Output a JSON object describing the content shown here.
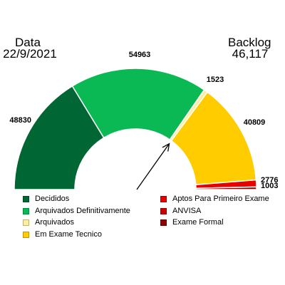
{
  "header": {
    "data_label": "Data",
    "data_value": "22/9/2021",
    "backlog_label": "Backlog",
    "backlog_value": "46,117"
  },
  "chart_data": {
    "type": "gauge",
    "series": [
      {
        "name": "Decididos",
        "value": 48830,
        "color": "#006633"
      },
      {
        "name": "Arquivados Definitivamente",
        "value": 54963,
        "color": "#0ab954"
      },
      {
        "name": "Arquivados",
        "value": 1523,
        "color": "#ffeea0"
      },
      {
        "name": "Em Exame Tecnico",
        "value": 40809,
        "color": "#ffcc00"
      },
      {
        "name": "Aptos Para Primeiro Exame",
        "value": 2776,
        "color": "#e60000"
      },
      {
        "name": "ANVISA",
        "value": 0,
        "color": "#cc0000"
      },
      {
        "name": "Exame Formal",
        "value": 1003,
        "color": "#8b0000"
      }
    ],
    "needle_value": 105316,
    "legend_position": "bottom"
  }
}
